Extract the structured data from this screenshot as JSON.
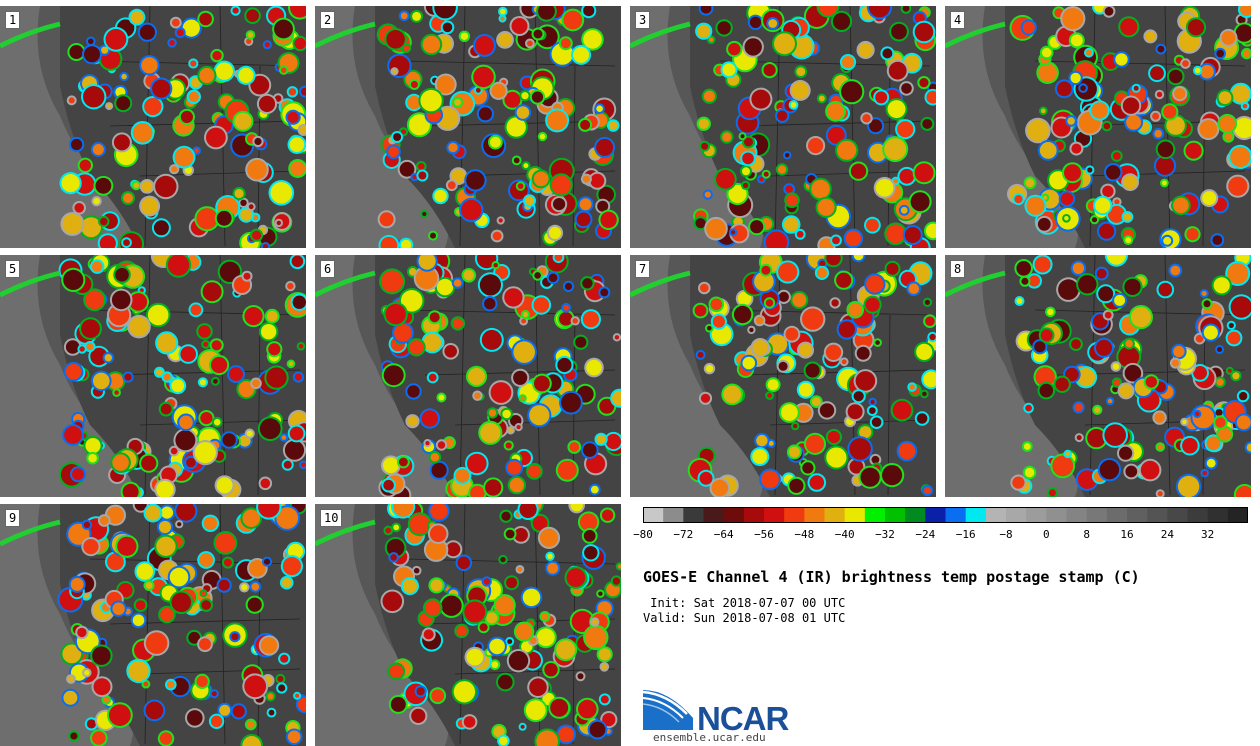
{
  "panels": [
    {
      "label": "1"
    },
    {
      "label": "2"
    },
    {
      "label": "3"
    },
    {
      "label": "4"
    },
    {
      "label": "5"
    },
    {
      "label": "6"
    },
    {
      "label": "7"
    },
    {
      "label": "8"
    },
    {
      "label": "9"
    },
    {
      "label": "10"
    }
  ],
  "colorbar": {
    "colors": [
      "#c8c8c8",
      "#8c8c8c",
      "#3a3a3a",
      "#4a1a1a",
      "#6e0b0b",
      "#a60a0a",
      "#d01010",
      "#f03a0f",
      "#f07a0f",
      "#e0b010",
      "#e8e800",
      "#00f000",
      "#00c000",
      "#008a20",
      "#0a20a8",
      "#0a6ef0",
      "#00e8f0",
      "#b4b4b4",
      "#a8a8a8",
      "#9c9c9c",
      "#909090",
      "#848484",
      "#787878",
      "#6c6c6c",
      "#606060",
      "#545454",
      "#484848",
      "#3c3c3c",
      "#303030",
      "#242424"
    ],
    "tick_labels": [
      "−80",
      "−72",
      "−64",
      "−56",
      "−48",
      "−40",
      "−32",
      "−24",
      "−16",
      "−8",
      "0",
      "8",
      "16",
      "24",
      "32"
    ]
  },
  "title": "GOES-E Channel 4 (IR) brightness temp postage stamp (C)",
  "init_line": " Init: Sat 2018-07-07 00 UTC",
  "valid_line": "Valid: Sun 2018-07-08 01 UTC",
  "logo_text": "NCAR",
  "url": "ensemble.ucar.edu"
}
